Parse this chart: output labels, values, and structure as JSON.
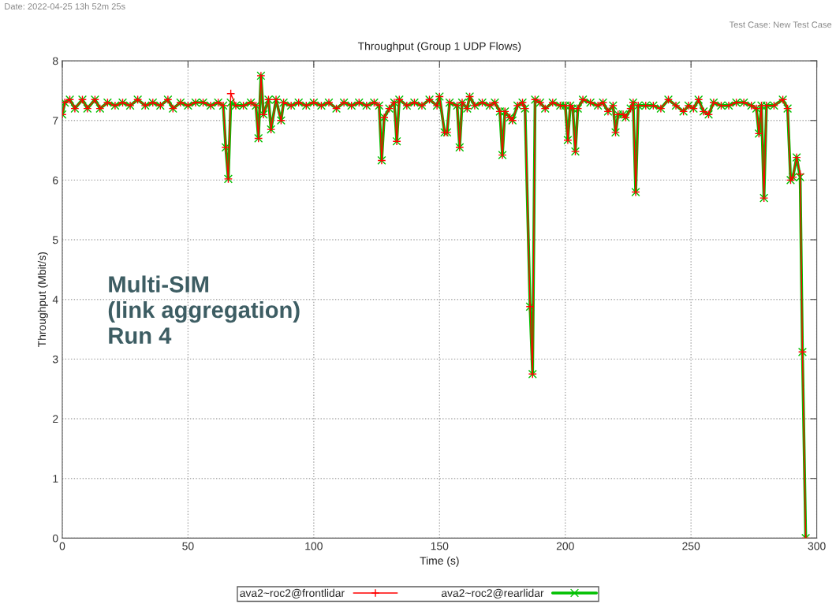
{
  "chart_data": {
    "type": "line",
    "title": "Throughput (Group 1 UDP Flows)",
    "xlabel": "Time (s)",
    "ylabel": "Throughput (Mbit/s)",
    "annotations": [
      "Date: 2022-04-25 13h 52m 25s",
      "Test Case: New Test Case",
      "Multi-SIM\n(link aggregation)\nRun 4"
    ],
    "x": [
      0,
      1,
      3,
      5,
      8,
      10,
      13,
      15,
      18,
      21,
      24,
      27,
      30,
      33,
      36,
      39,
      42,
      44,
      47,
      50,
      53,
      56,
      59,
      62,
      64,
      65,
      66,
      67,
      69,
      72,
      75,
      77,
      78,
      79,
      80,
      82,
      83,
      85,
      87,
      88,
      91,
      94,
      97,
      100,
      103,
      106,
      109,
      112,
      115,
      118,
      121,
      124,
      126,
      127,
      128,
      130,
      132,
      133,
      134,
      137,
      140,
      143,
      146,
      149,
      150,
      152,
      153,
      154,
      157,
      158,
      159,
      161,
      162,
      164,
      167,
      170,
      172,
      174,
      175,
      176,
      178,
      179,
      181,
      183,
      184,
      186,
      187,
      188,
      190,
      192,
      195,
      198,
      200,
      201,
      202,
      203,
      204,
      205,
      207,
      210,
      213,
      215,
      217,
      219,
      220,
      221,
      223,
      224,
      226,
      227,
      228,
      229,
      232,
      235,
      238,
      241,
      244,
      247,
      249,
      251,
      253,
      255,
      257,
      259,
      262,
      265,
      268,
      271,
      274,
      276,
      277,
      278,
      279,
      280,
      283,
      286.5,
      288.4,
      289.6,
      290.5,
      292,
      293.4,
      294.3,
      295.6
    ],
    "series": [
      {
        "name": "ava2~roc2@frontlidar",
        "color": "#ff0000",
        "marker": "plus",
        "values": [
          7.1,
          7.3,
          7.35,
          7.2,
          7.35,
          7.2,
          7.35,
          7.2,
          7.3,
          7.25,
          7.3,
          7.25,
          7.35,
          7.25,
          7.3,
          7.25,
          7.35,
          7.2,
          7.3,
          7.25,
          7.3,
          7.3,
          7.25,
          7.3,
          7.25,
          6.55,
          6.02,
          7.45,
          7.25,
          7.25,
          7.3,
          7.25,
          6.7,
          7.75,
          7.1,
          7.35,
          6.85,
          7.35,
          7.0,
          7.3,
          7.25,
          7.3,
          7.25,
          7.3,
          7.25,
          7.3,
          7.2,
          7.3,
          7.25,
          7.3,
          7.25,
          7.3,
          7.25,
          6.33,
          7.05,
          7.2,
          7.3,
          6.65,
          7.35,
          7.25,
          7.3,
          7.25,
          7.35,
          7.25,
          7.4,
          6.8,
          6.8,
          7.3,
          7.25,
          6.55,
          7.3,
          7.2,
          7.4,
          7.25,
          7.3,
          7.25,
          7.3,
          7.15,
          6.42,
          7.15,
          7.05,
          7.0,
          7.25,
          7.3,
          7.2,
          3.88,
          2.75,
          7.35,
          7.3,
          7.2,
          7.3,
          7.25,
          7.25,
          6.67,
          7.25,
          7.2,
          6.48,
          7.2,
          7.35,
          7.3,
          7.25,
          7.3,
          7.15,
          7.25,
          6.8,
          7.1,
          7.1,
          7.05,
          7.2,
          7.3,
          5.8,
          7.25,
          7.25,
          7.25,
          7.2,
          7.35,
          7.25,
          7.15,
          7.25,
          7.2,
          7.35,
          7.15,
          7.1,
          7.3,
          7.25,
          7.25,
          7.3,
          7.3,
          7.25,
          7.2,
          6.78,
          7.25,
          5.7,
          7.25,
          7.25,
          7.35,
          7.2,
          6.0,
          6.05,
          6.38,
          6.1,
          3.12,
          0
        ]
      },
      {
        "name": "ava2~roc2@rearlidar",
        "color": "#00c000",
        "marker": "cross",
        "values": [
          7.1,
          7.3,
          7.35,
          7.2,
          7.35,
          7.2,
          7.35,
          7.2,
          7.3,
          7.25,
          7.3,
          7.25,
          7.35,
          7.25,
          7.3,
          7.25,
          7.35,
          7.2,
          7.3,
          7.25,
          7.3,
          7.3,
          7.25,
          7.3,
          7.25,
          6.55,
          6.02,
          7.3,
          7.25,
          7.25,
          7.3,
          7.25,
          6.7,
          7.75,
          7.1,
          7.35,
          6.85,
          7.35,
          7.0,
          7.3,
          7.25,
          7.3,
          7.25,
          7.3,
          7.25,
          7.3,
          7.2,
          7.3,
          7.25,
          7.3,
          7.25,
          7.3,
          7.25,
          6.33,
          7.05,
          7.2,
          7.3,
          6.65,
          7.35,
          7.25,
          7.3,
          7.25,
          7.35,
          7.25,
          7.4,
          6.8,
          6.8,
          7.3,
          7.25,
          6.55,
          7.3,
          7.2,
          7.4,
          7.25,
          7.3,
          7.25,
          7.3,
          7.15,
          6.42,
          7.15,
          7.05,
          7.0,
          7.25,
          7.3,
          7.2,
          3.88,
          2.75,
          7.35,
          7.3,
          7.2,
          7.3,
          7.25,
          7.25,
          6.67,
          7.25,
          7.2,
          6.48,
          7.2,
          7.35,
          7.3,
          7.25,
          7.3,
          7.15,
          7.25,
          6.8,
          7.1,
          7.1,
          7.05,
          7.2,
          7.3,
          5.8,
          7.25,
          7.25,
          7.25,
          7.2,
          7.35,
          7.25,
          7.15,
          7.25,
          7.2,
          7.35,
          7.15,
          7.1,
          7.3,
          7.25,
          7.25,
          7.3,
          7.3,
          7.25,
          7.2,
          6.78,
          7.25,
          5.7,
          7.25,
          7.25,
          7.35,
          7.2,
          6.0,
          6.05,
          6.38,
          6.05,
          3.12,
          0
        ]
      }
    ],
    "xlim": [
      0,
      300
    ],
    "xticks": [
      0,
      50,
      100,
      150,
      200,
      250,
      300
    ],
    "ylim": [
      0,
      8
    ],
    "yticks": [
      0,
      1,
      2,
      3,
      4,
      5,
      6,
      7,
      8
    ],
    "grid": true,
    "legend": "bottom",
    "line_style": "solid"
  }
}
